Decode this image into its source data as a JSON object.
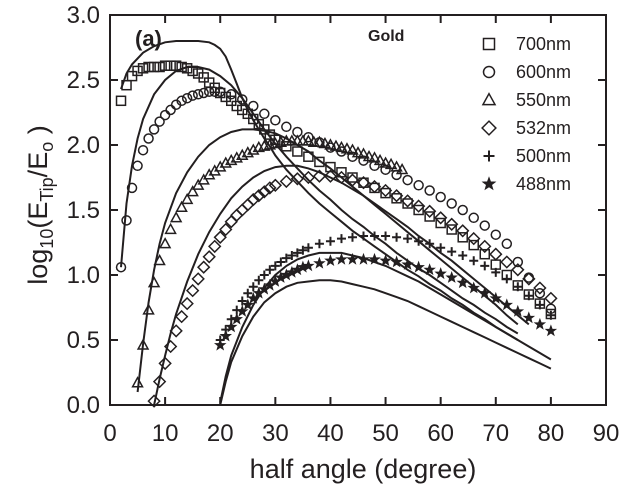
{
  "chart_data": {
    "type": "scatter",
    "panel_label": "(a)",
    "material_label": "Gold",
    "xlabel": "half angle (degree)",
    "ylabel": {
      "prefix": "log",
      "sub1": "10",
      "mid": "(E",
      "sub2": "Tip",
      "slash": "/E",
      "sub3": "o",
      "end": " )"
    },
    "xlim": [
      0,
      90
    ],
    "ylim": [
      0,
      3.0
    ],
    "x_ticks": [
      0,
      10,
      20,
      30,
      40,
      50,
      60,
      70,
      80,
      90
    ],
    "x_tick_labels": [
      "0",
      "10",
      "20",
      "30",
      "40",
      "50",
      "60",
      "70",
      "80",
      "90"
    ],
    "y_ticks": [
      0,
      0.5,
      1.0,
      1.5,
      2.0,
      2.5,
      3.0
    ],
    "y_tick_labels": [
      "0.0",
      "0.5",
      "1.0",
      "1.5",
      "2.0",
      "2.5",
      "3.0"
    ],
    "legend_position": "top-right",
    "series": [
      {
        "name": "700nm",
        "marker": "square",
        "x": [
          2,
          3,
          4,
          5,
          6,
          7,
          8,
          9,
          10,
          11,
          12,
          13,
          14,
          15,
          16,
          17,
          18,
          19,
          20,
          21,
          22,
          23,
          24,
          25,
          26,
          27,
          28,
          29,
          30,
          32,
          34,
          36,
          38,
          40,
          42,
          44,
          46,
          48,
          50,
          52,
          54,
          56,
          58,
          60,
          62,
          64,
          66,
          68,
          70,
          72,
          74,
          76,
          78,
          80
        ],
        "y": [
          2.34,
          2.46,
          2.53,
          2.57,
          2.59,
          2.6,
          2.6,
          2.6,
          2.61,
          2.61,
          2.61,
          2.6,
          2.59,
          2.57,
          2.55,
          2.52,
          2.48,
          2.44,
          2.4,
          2.37,
          2.34,
          2.3,
          2.27,
          2.24,
          2.2,
          2.16,
          2.12,
          2.08,
          2.04,
          1.99,
          1.95,
          1.91,
          1.87,
          1.83,
          1.79,
          1.75,
          1.71,
          1.67,
          1.63,
          1.59,
          1.55,
          1.5,
          1.45,
          1.4,
          1.35,
          1.29,
          1.23,
          1.16,
          1.08,
          1.0,
          0.92,
          0.85,
          0.78,
          0.7
        ]
      },
      {
        "name": "600nm",
        "marker": "circle",
        "x": [
          2,
          3,
          4,
          5,
          6,
          7,
          8,
          9,
          10,
          11,
          12,
          13,
          14,
          15,
          16,
          17,
          18,
          19,
          20,
          22,
          24,
          26,
          28,
          30,
          32,
          34,
          36,
          38,
          40,
          42,
          44,
          46,
          48,
          50,
          52,
          54,
          56,
          58,
          60,
          62,
          64,
          66,
          68,
          70,
          72,
          74,
          76,
          78,
          80
        ],
        "y": [
          1.06,
          1.42,
          1.67,
          1.84,
          1.96,
          2.05,
          2.12,
          2.18,
          2.23,
          2.27,
          2.31,
          2.34,
          2.36,
          2.38,
          2.39,
          2.4,
          2.41,
          2.41,
          2.41,
          2.39,
          2.35,
          2.3,
          2.24,
          2.19,
          2.14,
          2.1,
          2.06,
          2.02,
          1.98,
          1.95,
          1.91,
          1.88,
          1.84,
          1.81,
          1.77,
          1.73,
          1.69,
          1.65,
          1.6,
          1.55,
          1.5,
          1.44,
          1.38,
          1.31,
          1.24,
          1.1,
          0.98,
          0.86,
          0.74
        ]
      },
      {
        "name": "550nm",
        "marker": "triangle",
        "x": [
          5,
          6,
          7,
          8,
          9,
          10,
          11,
          12,
          13,
          14,
          15,
          16,
          17,
          18,
          19,
          20,
          21,
          22,
          23,
          24,
          25,
          26,
          27,
          28,
          29,
          30,
          31,
          32,
          33,
          34,
          35,
          36,
          37,
          38,
          39,
          40,
          41,
          42,
          43,
          44,
          45,
          46,
          47,
          48,
          49,
          50,
          51,
          52,
          53
        ],
        "y": [
          0.17,
          0.46,
          0.73,
          0.94,
          1.11,
          1.24,
          1.35,
          1.44,
          1.52,
          1.58,
          1.64,
          1.69,
          1.73,
          1.77,
          1.8,
          1.83,
          1.86,
          1.88,
          1.9,
          1.92,
          1.94,
          1.96,
          1.98,
          1.99,
          2.0,
          2.01,
          2.02,
          2.03,
          2.03,
          2.03,
          2.03,
          2.03,
          2.02,
          2.02,
          2.01,
          2.0,
          1.99,
          1.98,
          1.97,
          1.96,
          1.94,
          1.93,
          1.91,
          1.9,
          1.88,
          1.86,
          1.85,
          1.83,
          1.81
        ]
      },
      {
        "name": "532nm",
        "marker": "diamond",
        "x": [
          8,
          9,
          10,
          11,
          12,
          13,
          14,
          15,
          16,
          17,
          18,
          19,
          20,
          21,
          22,
          23,
          24,
          25,
          26,
          27,
          28,
          29,
          30,
          32,
          34,
          36,
          38,
          40,
          42,
          44,
          46,
          48,
          50,
          52,
          54,
          56,
          58,
          60,
          62,
          64,
          66,
          68,
          70,
          72,
          74,
          76,
          78,
          80
        ],
        "y": [
          0.03,
          0.18,
          0.32,
          0.45,
          0.57,
          0.68,
          0.78,
          0.88,
          0.97,
          1.06,
          1.14,
          1.22,
          1.29,
          1.35,
          1.41,
          1.46,
          1.5,
          1.54,
          1.58,
          1.61,
          1.64,
          1.67,
          1.69,
          1.72,
          1.74,
          1.75,
          1.76,
          1.76,
          1.75,
          1.73,
          1.71,
          1.68,
          1.65,
          1.61,
          1.57,
          1.53,
          1.49,
          1.44,
          1.39,
          1.34,
          1.28,
          1.22,
          1.16,
          1.1,
          1.04,
          0.97,
          0.9,
          0.82
        ]
      },
      {
        "name": "500nm",
        "marker": "plus",
        "x": [
          20,
          21,
          22,
          23,
          24,
          25,
          26,
          27,
          28,
          29,
          30,
          31,
          32,
          33,
          34,
          35,
          36,
          38,
          40,
          42,
          44,
          46,
          48,
          50,
          52,
          54,
          56,
          58,
          60,
          62,
          64,
          66,
          68,
          70,
          72,
          74,
          76,
          78,
          80
        ],
        "y": [
          0.5,
          0.58,
          0.66,
          0.73,
          0.8,
          0.86,
          0.91,
          0.96,
          1.0,
          1.04,
          1.07,
          1.1,
          1.13,
          1.15,
          1.17,
          1.19,
          1.21,
          1.24,
          1.26,
          1.28,
          1.29,
          1.3,
          1.3,
          1.3,
          1.29,
          1.28,
          1.26,
          1.24,
          1.21,
          1.18,
          1.15,
          1.11,
          1.07,
          1.02,
          0.97,
          0.91,
          0.84,
          0.77,
          0.69
        ]
      },
      {
        "name": "488nm",
        "marker": "star",
        "x": [
          20,
          21,
          22,
          23,
          24,
          25,
          26,
          27,
          28,
          29,
          30,
          31,
          32,
          33,
          34,
          35,
          36,
          38,
          40,
          42,
          44,
          46,
          48,
          50,
          52,
          54,
          56,
          58,
          60,
          62,
          64,
          66,
          68,
          70,
          72,
          74,
          76,
          78,
          80
        ],
        "y": [
          0.46,
          0.53,
          0.6,
          0.66,
          0.72,
          0.77,
          0.82,
          0.86,
          0.89,
          0.92,
          0.95,
          0.98,
          1.0,
          1.02,
          1.04,
          1.06,
          1.07,
          1.09,
          1.11,
          1.12,
          1.12,
          1.12,
          1.12,
          1.11,
          1.1,
          1.08,
          1.06,
          1.04,
          1.01,
          0.98,
          0.94,
          0.9,
          0.86,
          0.82,
          0.77,
          0.72,
          0.67,
          0.62,
          0.57
        ]
      }
    ],
    "fit_curves": [
      {
        "x": [
          2,
          3,
          4,
          6,
          8,
          10,
          12,
          14,
          16,
          18,
          19,
          20,
          21,
          22,
          23,
          24,
          25,
          26,
          27,
          28,
          29,
          30,
          32,
          34,
          36,
          38,
          40,
          42,
          44,
          46,
          48,
          50,
          52,
          54,
          56,
          58,
          60,
          62,
          64,
          66,
          68,
          70,
          72,
          74
        ],
        "y": [
          2.43,
          2.55,
          2.62,
          2.71,
          2.76,
          2.79,
          2.8,
          2.8,
          2.8,
          2.79,
          2.77,
          2.74,
          2.68,
          2.58,
          2.47,
          2.36,
          2.27,
          2.19,
          2.12,
          2.05,
          1.99,
          1.92,
          1.81,
          1.72,
          1.63,
          1.55,
          1.48,
          1.41,
          1.34,
          1.28,
          1.22,
          1.16,
          1.1,
          1.04,
          0.99,
          0.93,
          0.88,
          0.82,
          0.77,
          0.71,
          0.66,
          0.6,
          0.55,
          0.5
        ]
      },
      {
        "x": [
          2,
          3,
          4,
          5,
          6,
          8,
          10,
          12,
          14,
          16,
          18,
          20,
          22,
          24,
          26,
          28,
          30,
          32,
          34,
          36,
          38,
          40,
          42,
          44,
          46,
          48,
          50,
          52,
          54,
          56,
          58,
          60,
          62,
          64,
          66,
          68,
          70,
          72,
          74
        ],
        "y": [
          1.06,
          1.55,
          1.84,
          2.05,
          2.2,
          2.39,
          2.5,
          2.57,
          2.6,
          2.6,
          2.58,
          2.53,
          2.46,
          2.36,
          2.24,
          2.12,
          2.01,
          1.91,
          1.82,
          1.73,
          1.65,
          1.58,
          1.5,
          1.43,
          1.37,
          1.3,
          1.24,
          1.17,
          1.11,
          1.05,
          1.0,
          0.94,
          0.88,
          0.82,
          0.77,
          0.71,
          0.66,
          0.6,
          0.55
        ]
      },
      {
        "x": [
          5,
          6,
          7,
          8,
          9,
          10,
          12,
          14,
          16,
          18,
          20,
          22,
          24,
          26,
          28,
          30,
          32,
          34,
          36,
          38,
          40,
          42,
          44,
          46,
          48,
          50,
          52,
          54,
          56,
          58,
          60,
          62,
          64,
          66,
          68,
          70,
          72,
          74
        ],
        "y": [
          0.1,
          0.47,
          0.79,
          1.04,
          1.24,
          1.4,
          1.63,
          1.79,
          1.91,
          2.0,
          2.06,
          2.1,
          2.12,
          2.12,
          2.11,
          2.09,
          2.05,
          2.0,
          1.95,
          1.88,
          1.82,
          1.75,
          1.68,
          1.61,
          1.54,
          1.47,
          1.4,
          1.33,
          1.26,
          1.19,
          1.12,
          1.05,
          0.98,
          0.91,
          0.84,
          0.77,
          0.69,
          0.62
        ]
      },
      {
        "x": [
          8,
          9,
          10,
          11,
          12,
          14,
          16,
          18,
          20,
          22,
          24,
          26,
          28,
          30,
          32,
          34,
          36,
          38,
          40,
          42,
          44,
          46,
          48,
          50,
          52,
          54,
          56,
          58,
          60,
          62,
          64,
          66,
          68,
          70,
          72,
          74,
          76
        ],
        "y": [
          0.0,
          0.2,
          0.38,
          0.55,
          0.7,
          0.95,
          1.16,
          1.33,
          1.47,
          1.59,
          1.68,
          1.75,
          1.8,
          1.83,
          1.84,
          1.84,
          1.82,
          1.79,
          1.75,
          1.71,
          1.66,
          1.61,
          1.55,
          1.49,
          1.43,
          1.37,
          1.3,
          1.24,
          1.17,
          1.11,
          1.04,
          0.97,
          0.9,
          0.83,
          0.76,
          0.69,
          0.62
        ]
      },
      {
        "x": [
          20,
          21,
          22,
          24,
          26,
          28,
          30,
          32,
          34,
          36,
          38,
          40,
          42,
          44,
          46,
          48,
          50,
          52,
          54,
          56,
          58,
          60,
          62,
          64,
          66,
          68,
          70,
          72,
          74,
          76,
          78,
          80
        ],
        "y": [
          0.02,
          0.22,
          0.38,
          0.6,
          0.77,
          0.9,
          1.0,
          1.07,
          1.12,
          1.15,
          1.17,
          1.17,
          1.17,
          1.15,
          1.13,
          1.1,
          1.07,
          1.03,
          0.99,
          0.95,
          0.9,
          0.85,
          0.8,
          0.75,
          0.7,
          0.65,
          0.6,
          0.55,
          0.5,
          0.45,
          0.4,
          0.35
        ]
      },
      {
        "x": [
          20,
          21,
          22,
          24,
          26,
          28,
          30,
          32,
          34,
          36,
          38,
          40,
          42,
          44,
          46,
          48,
          50,
          52,
          54,
          56,
          58,
          60,
          62,
          64,
          66,
          68,
          70,
          72,
          74,
          76,
          78,
          80
        ],
        "y": [
          0.0,
          0.18,
          0.33,
          0.53,
          0.68,
          0.79,
          0.86,
          0.91,
          0.94,
          0.95,
          0.96,
          0.96,
          0.95,
          0.93,
          0.91,
          0.89,
          0.86,
          0.83,
          0.8,
          0.76,
          0.72,
          0.68,
          0.64,
          0.6,
          0.56,
          0.52,
          0.48,
          0.44,
          0.4,
          0.36,
          0.32,
          0.28
        ]
      }
    ]
  }
}
